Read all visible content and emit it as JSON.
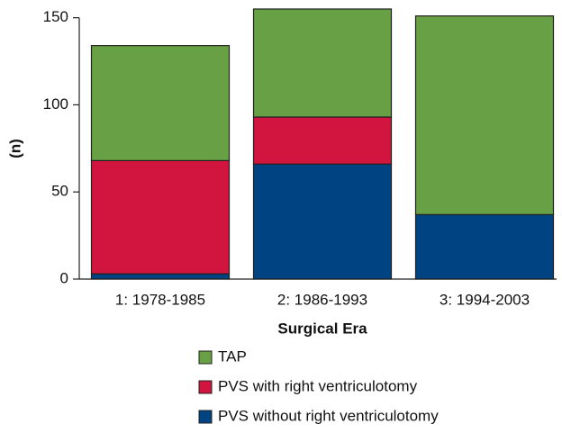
{
  "chart_data": {
    "type": "stacked_bar",
    "x_label": "Surgical Era",
    "y_label": "(n)",
    "categories": [
      "1: 1978-1985",
      "2: 1986-1993",
      "3: 1994-2003"
    ],
    "series": [
      {
        "name": "PVS without right ventriculotomy",
        "color": "#004382",
        "values": [
          3,
          66,
          37
        ]
      },
      {
        "name": "PVS with right ventriculotomy",
        "color": "#d2153e",
        "values": [
          65,
          27,
          0
        ]
      },
      {
        "name": "TAP",
        "color": "#68a045",
        "values": [
          66,
          62,
          114
        ]
      }
    ],
    "ylim": [
      0,
      155
    ],
    "yticks": [
      0,
      50,
      100,
      150
    ]
  }
}
